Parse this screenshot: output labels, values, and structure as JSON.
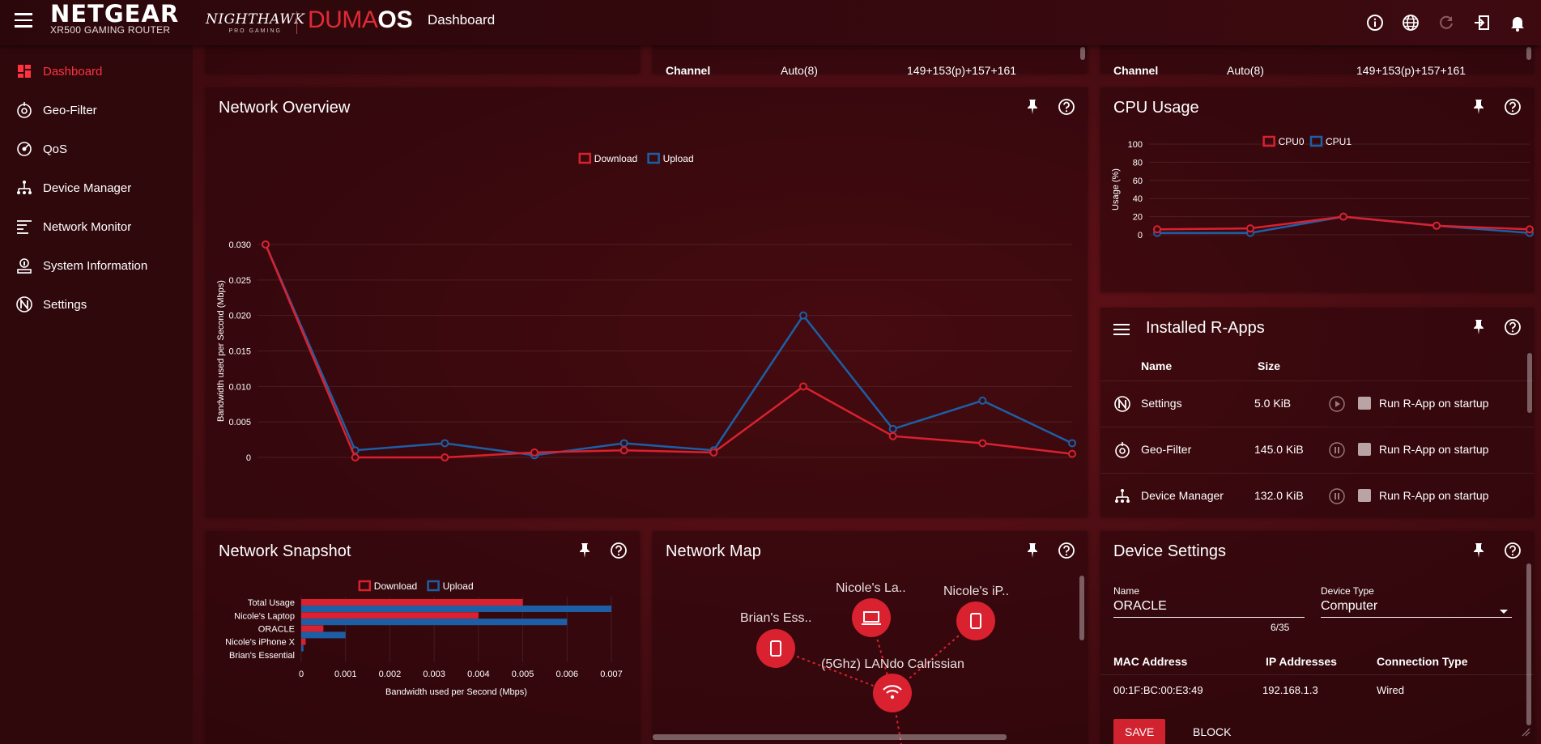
{
  "header": {
    "brand": "NETGEAR",
    "model": "XR500 GAMING ROUTER",
    "nighthawk": "NIGHTHAWK",
    "nighthawk_sub": "PRO GAMING",
    "duma_part1": "DUMA",
    "duma_part2": "OS",
    "page_title": "Dashboard",
    "icons": [
      "info-icon",
      "globe-icon",
      "refresh-icon",
      "logout-icon",
      "bell-icon"
    ]
  },
  "sidebar": {
    "items": [
      {
        "label": "Dashboard",
        "icon": "dashboard-icon",
        "active": true
      },
      {
        "label": "Geo-Filter",
        "icon": "geo-filter-icon",
        "active": false
      },
      {
        "label": "QoS",
        "icon": "qos-icon",
        "active": false
      },
      {
        "label": "Device Manager",
        "icon": "device-manager-icon",
        "active": false
      },
      {
        "label": "Network Monitor",
        "icon": "network-monitor-icon",
        "active": false
      },
      {
        "label": "System Information",
        "icon": "system-info-icon",
        "active": false
      },
      {
        "label": "Settings",
        "icon": "settings-icon",
        "active": false
      }
    ]
  },
  "wifi_top": {
    "left": {
      "label": "Channel",
      "mode": "Auto(8)",
      "channels": "149+153(p)+157+161"
    },
    "right": {
      "label": "Channel",
      "mode": "Auto(8)",
      "channels": "149+153(p)+157+161"
    }
  },
  "network_overview": {
    "title": "Network Overview"
  },
  "cpu_usage": {
    "title": "CPU Usage"
  },
  "rapps": {
    "title": "Installed R-Apps",
    "col_name": "Name",
    "col_size": "Size",
    "rows": [
      {
        "name": "Settings",
        "size": "5.0 KiB",
        "startup": "Run R-App on startup",
        "icon": "settings-icon",
        "state": "play"
      },
      {
        "name": "Geo-Filter",
        "size": "145.0 KiB",
        "startup": "Run R-App on startup",
        "icon": "geo-filter-icon",
        "state": "pause"
      },
      {
        "name": "Device Manager",
        "size": "132.0 KiB",
        "startup": "Run R-App on startup",
        "icon": "device-manager-icon",
        "state": "pause"
      }
    ]
  },
  "network_snapshot": {
    "title": "Network Snapshot"
  },
  "network_map": {
    "title": "Network Map",
    "nodes": [
      {
        "label": "Brian's Ess..",
        "kind": "phone"
      },
      {
        "label": "Nicole's La..",
        "kind": "laptop"
      },
      {
        "label": "Nicole's iP..",
        "kind": "phone"
      },
      {
        "label": "(5Ghz) LANdo Calrissian",
        "kind": "wifi"
      }
    ]
  },
  "device_settings": {
    "title": "Device Settings",
    "name_label": "Name",
    "name_value": "ORACLE",
    "name_counter": "6/35",
    "type_label": "Device Type",
    "type_value": "Computer",
    "mac_label": "MAC Address",
    "ip_label": "IP Addresses",
    "conn_label": "Connection Type",
    "mac_value": "00:1F:BC:00:E3:49",
    "ip_value": "192.168.1.3",
    "conn_value": "Wired",
    "save_label": "SAVE",
    "block_label": "BLOCK"
  },
  "colors": {
    "download": "#d9212f",
    "upload": "#1d5fa6",
    "accent": "#ff3340"
  },
  "chart_data": [
    {
      "id": "network_overview",
      "type": "line",
      "title": "",
      "ylabel": "Bandwidth used per Second (Mbps)",
      "xlabel": "",
      "ylim": [
        0,
        0.03
      ],
      "yticks": [
        "0.030",
        "0.025",
        "0.020",
        "0.015",
        "0.010",
        "0.005",
        "0"
      ],
      "legend": "top-center",
      "grid": true,
      "series": [
        {
          "name": "Download",
          "color": "#d9212f",
          "values": [
            0.03,
            0.0,
            0.0,
            0.0007,
            0.001,
            0.0007,
            0.01,
            0.003,
            0.002,
            0.0005
          ]
        },
        {
          "name": "Upload",
          "color": "#1d5fa6",
          "values": [
            0.03,
            0.001,
            0.002,
            0.0003,
            0.002,
            0.001,
            0.02,
            0.004,
            0.008,
            0.002
          ]
        }
      ]
    },
    {
      "id": "cpu_usage",
      "type": "line",
      "title": "",
      "ylabel": "Usage (%)",
      "xlabel": "",
      "ylim": [
        0,
        100
      ],
      "yticks": [
        "100",
        "80",
        "60",
        "40",
        "20",
        "0"
      ],
      "legend": "top-center",
      "grid": true,
      "series": [
        {
          "name": "CPU0",
          "color": "#d9212f",
          "values": [
            6,
            7,
            20,
            10,
            6
          ]
        },
        {
          "name": "CPU1",
          "color": "#1d5fa6",
          "values": [
            2,
            2,
            20,
            10,
            2
          ]
        }
      ]
    },
    {
      "id": "network_snapshot",
      "type": "bar",
      "orientation": "horizontal",
      "title": "",
      "xlabel": "Bandwidth used per Second (Mbps)",
      "ylabel": "",
      "xlim": [
        0,
        0.007
      ],
      "xticks": [
        "0",
        "0.001",
        "0.002",
        "0.003",
        "0.004",
        "0.005",
        "0.006",
        "0.007"
      ],
      "legend": "top-center",
      "categories": [
        "Total Usage",
        "Nicole's Laptop",
        "ORACLE",
        "Nicole's iPhone X",
        "Brian's Essential"
      ],
      "series": [
        {
          "name": "Download",
          "color": "#d9212f",
          "values": [
            0.005,
            0.004,
            0.0005,
            0.0001,
            0
          ]
        },
        {
          "name": "Upload",
          "color": "#1d5fa6",
          "values": [
            0.007,
            0.006,
            0.001,
            5e-05,
            0
          ]
        }
      ]
    }
  ]
}
